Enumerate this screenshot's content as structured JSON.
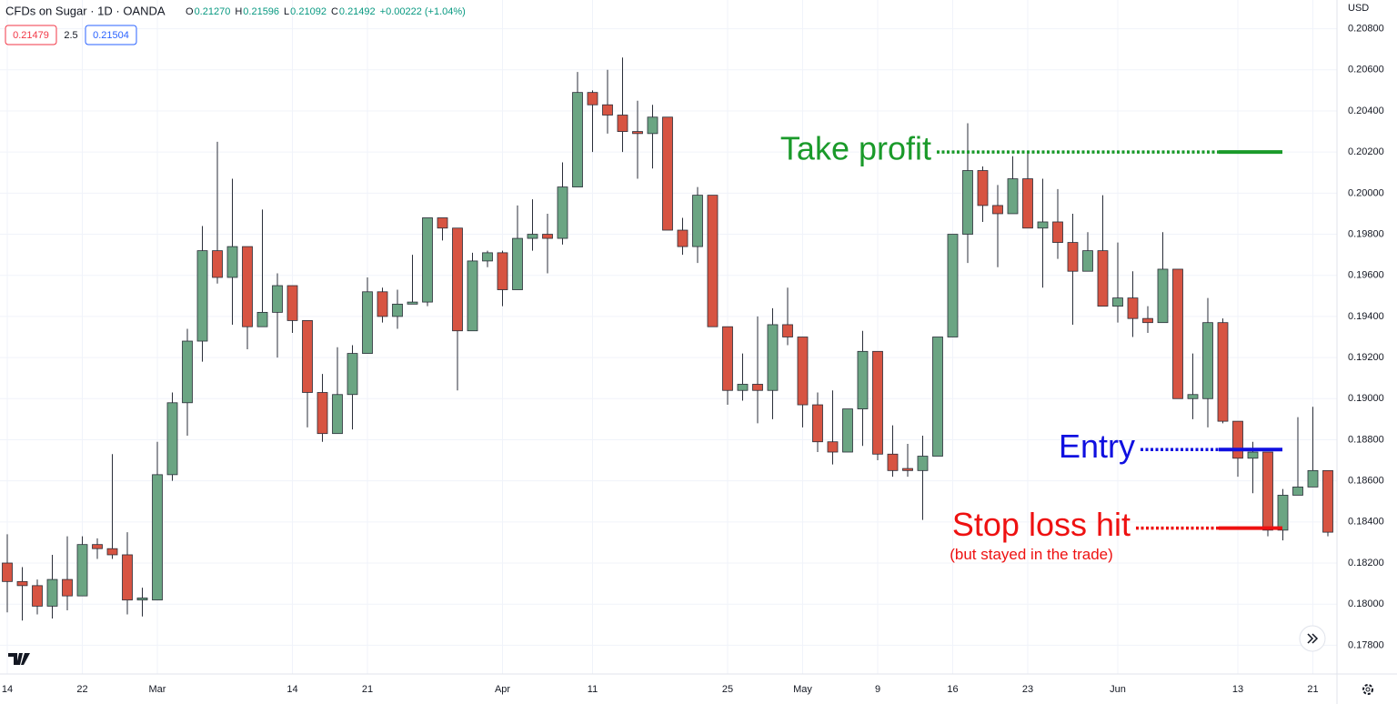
{
  "header": {
    "title": "CFDs on Sugar · 1D · OANDA",
    "ohlc": [
      {
        "key": "O",
        "text": "0.21270"
      },
      {
        "key": "H",
        "text": "0.21596"
      },
      {
        "key": "L",
        "text": "0.21092"
      },
      {
        "key": "C",
        "text": "0.21492"
      }
    ],
    "change": "+0.00222 (+1.04%)",
    "bid": "0.21479",
    "spread": "2.5",
    "ask": "0.21504",
    "currency": "USD"
  },
  "chart_data": {
    "type": "candlestick",
    "up_color": "#6ba583",
    "down_color": "#d75442",
    "categories": [
      "14",
      null,
      null,
      null,
      null,
      "22",
      null,
      null,
      null,
      null,
      "Mar",
      null,
      null,
      null,
      null,
      null,
      null,
      null,
      null,
      "14",
      null,
      null,
      null,
      null,
      "21",
      null,
      null,
      null,
      null,
      null,
      null,
      null,
      null,
      "Apr",
      null,
      null,
      null,
      null,
      null,
      "11",
      null,
      null,
      null,
      null,
      null,
      null,
      null,
      null,
      "25",
      null,
      null,
      null,
      null,
      "May",
      null,
      null,
      null,
      null,
      "9",
      null,
      null,
      null,
      null,
      "16",
      null,
      null,
      null,
      null,
      "23",
      null,
      null,
      null,
      null,
      null,
      "Jun",
      null,
      null,
      null,
      null,
      null,
      null,
      null,
      "13",
      null,
      null,
      null,
      null,
      "21",
      null
    ],
    "open": [
      0.182,
      0.1811,
      0.1809,
      0.1799,
      0.1812,
      0.1804,
      0.1829,
      0.1827,
      0.1824,
      0.1802,
      0.1802,
      0.1863,
      0.1898,
      0.1928,
      0.1972,
      0.1959,
      0.1974,
      0.1935,
      0.1942,
      0.1955,
      0.1938,
      0.1903,
      0.1883,
      0.1902,
      0.1922,
      0.1952,
      0.194,
      0.1946,
      0.1947,
      0.1988,
      0.1983,
      0.1933,
      0.1967,
      0.1971,
      0.1953,
      0.1978,
      0.198,
      0.1978,
      0.2003,
      0.2049,
      0.2043,
      0.2038,
      0.203,
      0.2029,
      0.2037,
      0.1982,
      0.1974,
      0.1999,
      0.1935,
      0.1904,
      0.1907,
      0.1904,
      0.1936,
      0.193,
      0.1897,
      0.1879,
      0.1874,
      0.1895,
      0.1923,
      0.1873,
      0.1866,
      0.1865,
      0.1872,
      0.193,
      0.198,
      0.2011,
      0.1994,
      0.199,
      0.2007,
      0.1983,
      0.1986,
      0.1976,
      0.1962,
      0.1972,
      0.1945,
      0.1949,
      0.1939,
      0.1937,
      0.1963,
      0.19,
      0.19,
      0.1937,
      0.1889,
      0.1871,
      0.1874,
      0.1836,
      0.1853,
      0.1857,
      0.1865
    ],
    "high": [
      0.1834,
      0.1818,
      0.1812,
      0.1824,
      0.1833,
      0.1833,
      0.1832,
      0.1873,
      0.1835,
      0.1808,
      0.1879,
      0.1903,
      0.1934,
      0.1984,
      0.2025,
      0.2007,
      0.1974,
      0.1992,
      0.1961,
      0.1955,
      0.1938,
      0.1912,
      0.1925,
      0.1926,
      0.1959,
      0.1954,
      0.1953,
      0.197,
      0.1988,
      0.1988,
      0.1983,
      0.1971,
      0.1972,
      0.1972,
      0.1994,
      0.1997,
      0.199,
      0.2015,
      0.2059,
      0.205,
      0.206,
      0.2066,
      0.2045,
      0.2043,
      0.2037,
      0.1988,
      0.2003,
      0.1999,
      0.1935,
      0.1922,
      0.194,
      0.1944,
      0.1954,
      0.193,
      0.1903,
      0.1904,
      0.1895,
      0.1933,
      0.1923,
      0.1887,
      0.1878,
      0.1882,
      0.193,
      0.198,
      0.2034,
      0.2013,
      0.2004,
      0.2018,
      0.202,
      0.2007,
      0.2002,
      0.199,
      0.1981,
      0.1999,
      0.1976,
      0.1962,
      0.1945,
      0.1981,
      0.1963,
      0.1922,
      0.1949,
      0.1939,
      0.1889,
      0.1879,
      0.1874,
      0.1856,
      0.1891,
      0.1896,
      0.1865
    ],
    "low": [
      0.1796,
      0.1792,
      0.1795,
      0.1793,
      0.1797,
      0.1804,
      0.1822,
      0.1822,
      0.1795,
      0.1794,
      0.1802,
      0.186,
      0.1882,
      0.1918,
      0.1956,
      0.1936,
      0.1924,
      0.1935,
      0.192,
      0.1932,
      0.1886,
      0.1879,
      0.1883,
      0.1885,
      0.1922,
      0.1937,
      0.1934,
      0.1946,
      0.1945,
      0.1977,
      0.1904,
      0.1933,
      0.1964,
      0.1945,
      0.1953,
      0.1972,
      0.1961,
      0.1975,
      0.2003,
      0.202,
      0.2029,
      0.202,
      0.2007,
      0.2012,
      0.1982,
      0.197,
      0.1966,
      0.1935,
      0.1897,
      0.1899,
      0.1888,
      0.189,
      0.1926,
      0.1886,
      0.1874,
      0.1868,
      0.1874,
      0.1877,
      0.187,
      0.1862,
      0.1862,
      0.1841,
      0.1872,
      0.193,
      0.1966,
      0.1986,
      0.1964,
      0.199,
      0.1983,
      0.1954,
      0.1968,
      0.1936,
      0.1962,
      0.1945,
      0.1937,
      0.193,
      0.1932,
      0.1937,
      0.19,
      0.189,
      0.1886,
      0.1888,
      0.1862,
      0.1854,
      0.1833,
      0.1831,
      0.1853,
      0.1857,
      0.1833
    ],
    "close": [
      0.1811,
      0.1809,
      0.1799,
      0.1812,
      0.1804,
      0.1829,
      0.1827,
      0.1824,
      0.1802,
      0.1803,
      0.1863,
      0.1898,
      0.1928,
      0.1972,
      0.1959,
      0.1974,
      0.1935,
      0.1942,
      0.1955,
      0.1938,
      0.1903,
      0.1883,
      0.1902,
      0.1922,
      0.1952,
      0.194,
      0.1946,
      0.1947,
      0.1988,
      0.1983,
      0.1933,
      0.1967,
      0.1971,
      0.1953,
      0.1978,
      0.198,
      0.1978,
      0.2003,
      0.2049,
      0.2043,
      0.2038,
      0.203,
      0.2029,
      0.2037,
      0.1982,
      0.1974,
      0.1999,
      0.1935,
      0.1904,
      0.1907,
      0.1904,
      0.1936,
      0.193,
      0.1897,
      0.1879,
      0.1874,
      0.1895,
      0.1923,
      0.1873,
      0.1865,
      0.1865,
      0.1872,
      0.193,
      0.198,
      0.2011,
      0.1994,
      0.199,
      0.2007,
      0.1983,
      0.1986,
      0.1976,
      0.1962,
      0.1972,
      0.1945,
      0.1949,
      0.1939,
      0.1937,
      0.1963,
      0.19,
      0.1902,
      0.1937,
      0.1889,
      0.1871,
      0.1874,
      0.1836,
      0.1853,
      0.1857,
      0.1865,
      0.1835
    ],
    "ylim": [
      0.1766,
      0.2094
    ],
    "yticks": [
      {
        "value": 0.178,
        "label": "0.17800"
      },
      {
        "value": 0.18,
        "label": "0.18000"
      },
      {
        "value": 0.182,
        "label": "0.18200"
      },
      {
        "value": 0.184,
        "label": "0.18400"
      },
      {
        "value": 0.186,
        "label": "0.18600"
      },
      {
        "value": 0.188,
        "label": "0.18800"
      },
      {
        "value": 0.19,
        "label": "0.19000"
      },
      {
        "value": 0.192,
        "label": "0.19200"
      },
      {
        "value": 0.194,
        "label": "0.19400"
      },
      {
        "value": 0.196,
        "label": "0.19600"
      },
      {
        "value": 0.198,
        "label": "0.19800"
      },
      {
        "value": 0.2,
        "label": "0.20000"
      },
      {
        "value": 0.202,
        "label": "0.20200"
      },
      {
        "value": 0.204,
        "label": "0.20400"
      },
      {
        "value": 0.206,
        "label": "0.20600"
      },
      {
        "value": 0.208,
        "label": "0.20800"
      }
    ],
    "grid": true,
    "annotations": [
      {
        "text": "Take profit",
        "value": 0.202,
        "color": "#1a9a2a"
      },
      {
        "text": "Entry",
        "value": 0.18752,
        "color": "#1010e0"
      },
      {
        "text": "Stop loss hit",
        "value": 0.1837,
        "color": "#ee1111",
        "note": "(but stayed in the trade)"
      }
    ]
  }
}
